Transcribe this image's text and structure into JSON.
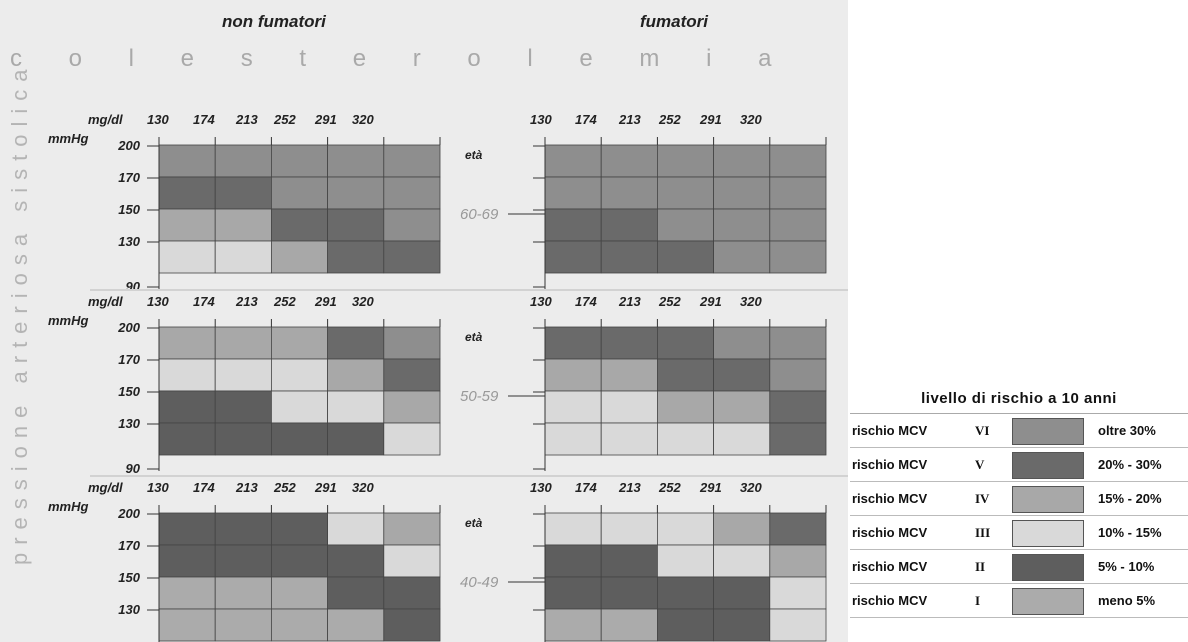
{
  "headers": {
    "non_smokers": "non fumatori",
    "smokers": "fumatori"
  },
  "axis_labels": {
    "cholesterol": "c o l e s t e r o l e m i a",
    "pressure": "pressione arteriosa sistolica"
  },
  "colors": {
    "VI": "#8e8e8e",
    "V": "#6a6a6a",
    "IV": "#a8a8a8",
    "III": "#d9d9d9",
    "II": "#5e5e5e",
    "I": "#ababab"
  },
  "chart_data": {
    "type": "heatmap",
    "x_unit": "mg/dl",
    "y_unit": "mmHg",
    "x_ticks": [
      "130",
      "174",
      "213",
      "252",
      "291",
      "320"
    ],
    "y_ticks": [
      "200",
      "170",
      "150",
      "130",
      "90"
    ],
    "eta_label": "età",
    "age_groups": [
      {
        "age": "60-69",
        "non_smokers": [
          [
            "VI",
            "VI",
            "VI",
            "VI",
            "VI"
          ],
          [
            "V",
            "V",
            "VI",
            "VI",
            "VI"
          ],
          [
            "IV",
            "IV",
            "V",
            "V",
            "VI"
          ],
          [
            "III",
            "III",
            "IV",
            "V",
            "V"
          ]
        ],
        "smokers": [
          [
            "VI",
            "VI",
            "VI",
            "VI",
            "VI"
          ],
          [
            "VI",
            "VI",
            "VI",
            "VI",
            "VI"
          ],
          [
            "V",
            "V",
            "VI",
            "VI",
            "VI"
          ],
          [
            "V",
            "V",
            "V",
            "VI",
            "VI"
          ]
        ]
      },
      {
        "age": "50-59",
        "non_smokers": [
          [
            "IV",
            "IV",
            "IV",
            "V",
            "VI"
          ],
          [
            "III",
            "III",
            "III",
            "IV",
            "V"
          ],
          [
            "II",
            "II",
            "III",
            "III",
            "IV"
          ],
          [
            "II",
            "II",
            "II",
            "II",
            "III"
          ]
        ],
        "smokers": [
          [
            "V",
            "V",
            "V",
            "VI",
            "VI"
          ],
          [
            "IV",
            "IV",
            "V",
            "V",
            "VI"
          ],
          [
            "III",
            "III",
            "IV",
            "IV",
            "V"
          ],
          [
            "III",
            "III",
            "III",
            "III",
            "V"
          ]
        ]
      },
      {
        "age": "40-49",
        "non_smokers": [
          [
            "II",
            "II",
            "II",
            "III",
            "IV"
          ],
          [
            "II",
            "II",
            "II",
            "II",
            "III"
          ],
          [
            "I",
            "I",
            "I",
            "II",
            "II"
          ],
          [
            "I",
            "I",
            "I",
            "I",
            "II"
          ]
        ],
        "smokers": [
          [
            "III",
            "III",
            "III",
            "IV",
            "V"
          ],
          [
            "II",
            "II",
            "III",
            "III",
            "IV"
          ],
          [
            "II",
            "II",
            "II",
            "II",
            "III"
          ],
          [
            "I",
            "I",
            "II",
            "II",
            "III"
          ]
        ]
      }
    ]
  },
  "legend": {
    "title": "livello di rischio a 10 anni",
    "items": [
      {
        "name": "rischio MCV",
        "level": "VI",
        "range": "oltre  30%"
      },
      {
        "name": "rischio MCV",
        "level": "V",
        "range": "20% -  30%"
      },
      {
        "name": "rischio MCV",
        "level": "IV",
        "range": "15% -  20%"
      },
      {
        "name": "rischio MCV",
        "level": "III",
        "range": "10% -  15%"
      },
      {
        "name": "rischio MCV",
        "level": "II",
        "range": "5% -  10%"
      },
      {
        "name": "rischio MCV",
        "level": "I",
        "range": "meno   5%"
      }
    ]
  }
}
